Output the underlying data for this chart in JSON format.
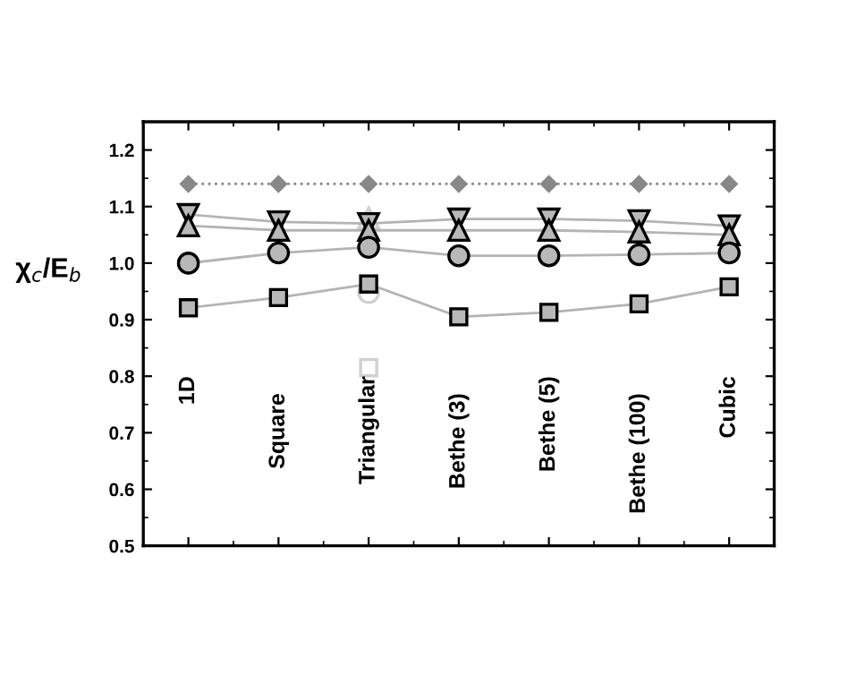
{
  "chart_data": {
    "type": "line",
    "ylabel": "χ$_{c}$/E$_{b}$",
    "categories": [
      "1D",
      "Square",
      "Triangular",
      "Bethe (3)",
      "Bethe (5)",
      "Bethe (100)",
      "Cubic"
    ],
    "ylim": [
      0.5,
      1.25
    ],
    "yticks": [
      0.5,
      0.6,
      0.7,
      0.8,
      0.9,
      {
        "value": 1,
        "label": "1.0"
      },
      1.1,
      1.2
    ],
    "grid": false,
    "legend": false,
    "series": [
      {
        "color": "#888888",
        "line_style": "dotted",
        "marker": "diamond",
        "values": [
          1.14,
          1.14,
          1.14,
          1.14,
          1.14,
          1.14,
          1.14
        ]
      },
      {
        "color": "#b4b4b4",
        "line_style": "solid",
        "marker": "triangle-down",
        "values": [
          1.086,
          1.073,
          1.07,
          1.078,
          1.078,
          1.075,
          1.066
        ]
      },
      {
        "color": "#b4b4b4",
        "line_style": "solid",
        "marker": "triangle",
        "values": [
          1.066,
          1.058,
          1.058,
          1.058,
          1.058,
          1.055,
          1.05
        ]
      },
      {
        "color": "#b4b4b4",
        "line_style": "solid",
        "marker": "circle",
        "values": [
          1.0,
          1.018,
          1.028,
          1.013,
          1.013,
          1.015,
          1.018
        ]
      },
      {
        "color": "#b4b4b4",
        "line_style": "solid",
        "marker": "square",
        "values": [
          0.921,
          0.939,
          0.963,
          0.905,
          0.913,
          0.928,
          0.958
        ]
      },
      {
        "type": "scatter",
        "color": "#d0d0d0",
        "marker": "triangle",
        "values": [
          null,
          null,
          1.08,
          null,
          null,
          null,
          null
        ]
      },
      {
        "type": "scatter",
        "color": "#d0d0d0",
        "marker": "circle",
        "values": [
          null,
          null,
          0.948,
          null,
          null,
          null,
          null
        ]
      },
      {
        "type": "scatter",
        "color": "#d0d0d0",
        "marker": "square",
        "values": [
          null,
          null,
          0.815,
          null,
          null,
          null,
          null
        ]
      }
    ]
  }
}
